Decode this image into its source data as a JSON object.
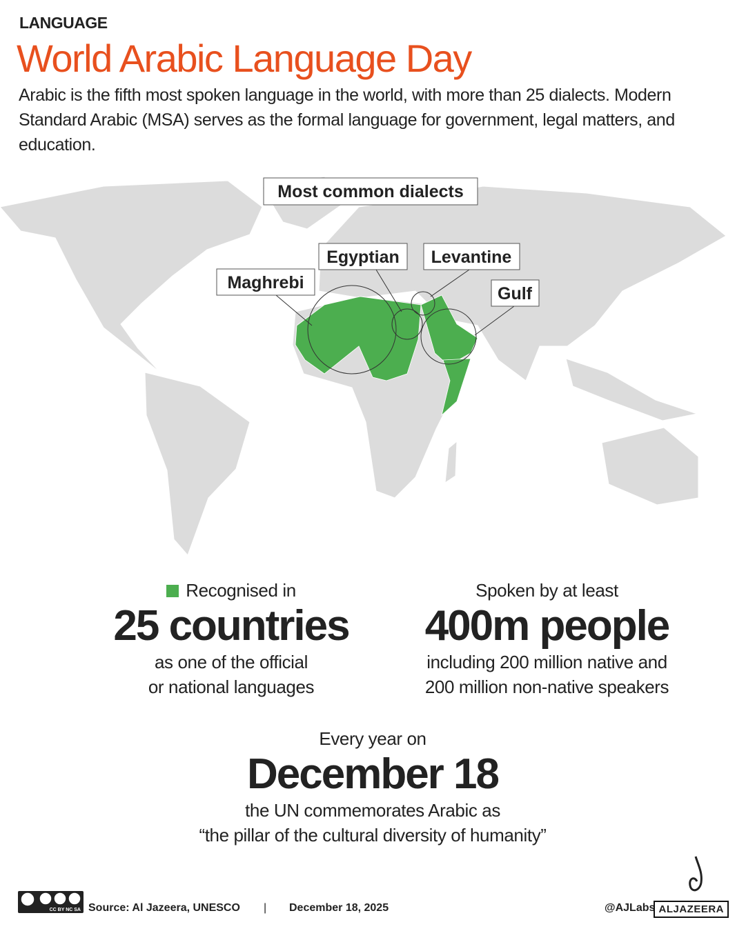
{
  "header": {
    "kicker": "LANGUAGE",
    "title": "World Arabic Language Day",
    "description": "Arabic is the fifth most spoken language in the world, with more than 25 dialects. Modern Standard Arabic (MSA) serves as the formal language for government, legal matters, and education."
  },
  "map": {
    "heading": "Most common dialects",
    "dialects": [
      "Maghrebi",
      "Egyptian",
      "Levantine",
      "Gulf"
    ],
    "colors": {
      "land": "#dcdcdc",
      "arabic": "#4cae4f"
    }
  },
  "stats": {
    "countries": {
      "lead": "Recognised in",
      "value": "25 countries",
      "line1": "as one of the official",
      "line2": "or national languages"
    },
    "people": {
      "lead": "Spoken by at least",
      "value": "400m people",
      "line1": "including 200 million native and",
      "line2": "200 million non-native speakers"
    },
    "day": {
      "lead": "Every year on",
      "value": "December 18",
      "line1": "the UN commemorates Arabic as",
      "line2": "“the pillar of the cultural diversity of humanity”"
    }
  },
  "footer": {
    "license": "CC BY NC SA",
    "source": "Source:  Al Jazeera, UNESCO",
    "separator": "|",
    "date": "December 18, 2025",
    "handle": "@AJLabs",
    "brand": "ALJAZEERA"
  },
  "colors": {
    "accent": "#e8501e",
    "green": "#4cae4f"
  }
}
